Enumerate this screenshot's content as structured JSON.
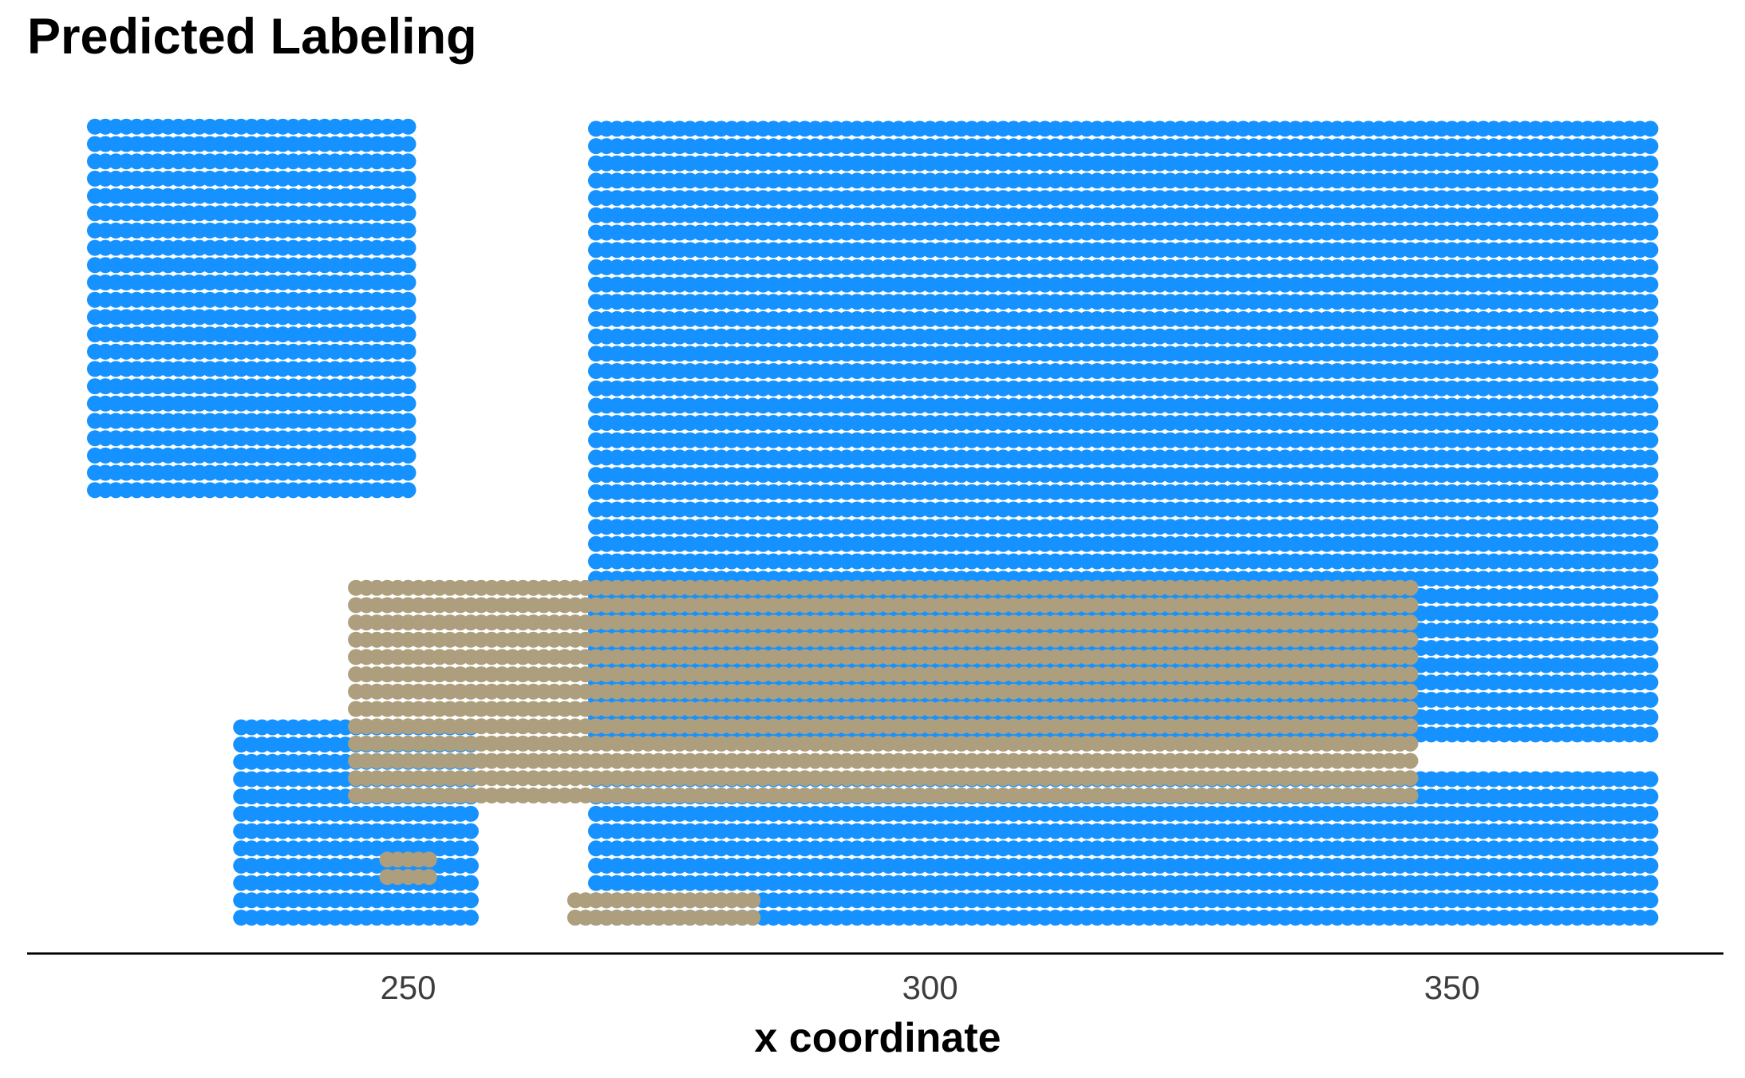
{
  "chart_data": {
    "type": "scatter",
    "title": "Predicted Labeling",
    "xlabel": "x coordinate",
    "ylabel": "",
    "xlim": [
      213.5,
      376
    ],
    "ylim": [
      0,
      78
    ],
    "x_ticks": [
      250,
      300,
      350
    ],
    "grid": false,
    "legend": "none",
    "colors": {
      "blue": "#1592FF",
      "tan": "#AD9E7D"
    },
    "series": [
      {
        "color": "blue",
        "regions": [
          {
            "x_min": 220,
            "x_max": 250,
            "y_low": 42,
            "y_high": 78
          },
          {
            "x_min": 268,
            "x_max": 369,
            "y_low": 18,
            "y_high": 78
          },
          {
            "x_min": 268,
            "x_max": 369,
            "y_low": 0,
            "y_high": 14
          },
          {
            "x_min": 234,
            "x_max": 256,
            "y_low": 0,
            "y_high": 20
          }
        ]
      },
      {
        "color": "tan",
        "regions": [
          {
            "x_min": 245,
            "x_max": 346,
            "y_low": 12,
            "y_high": 34
          },
          {
            "x_min": 266,
            "x_max": 283,
            "y_low": 0,
            "y_high": 2
          },
          {
            "x_min": 248,
            "x_max": 252,
            "y_low": 4,
            "y_high": 7
          }
        ]
      }
    ]
  }
}
